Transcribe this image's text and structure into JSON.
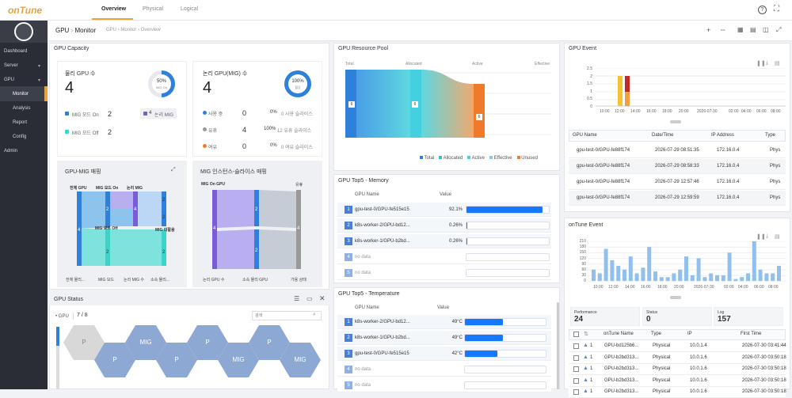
{
  "app": {
    "logo": "onTune"
  },
  "nav": {
    "tabs": [
      "Overview",
      "Physical",
      "Logical"
    ]
  },
  "sidebar": {
    "items": [
      "Dashboard",
      "Server",
      "GPU",
      "Monitor",
      "Analysis",
      "Report",
      "Config",
      "Admin"
    ]
  },
  "header": {
    "title": "GPU",
    "title2": "Monitor",
    "breadcrumb": [
      "GPU",
      "Monitor",
      "Overview"
    ]
  },
  "capacity": {
    "title": "GPU Capacity",
    "physical": {
      "label": "물리 GPU 수",
      "count": "4",
      "pct": "50%",
      "pct_label": "MIG On",
      "mig_on_label": "MIG 모드 On",
      "mig_on": "2",
      "mig_off_label": "MIG 모드 Off",
      "mig_off": "2",
      "logical_mig": "4",
      "logical_mig_label": "논리 MIG"
    },
    "logical": {
      "label": "논리 GPU(MIG) 수",
      "count": "4",
      "pct": "100%",
      "pct_label": "할당",
      "rows": [
        {
          "label": "사용 중",
          "n": "0",
          "pct": "0%",
          "desc": "0 사용 슬라이스"
        },
        {
          "label": "유휴",
          "n": "4",
          "pct": "100%",
          "desc": "12 유휴 슬라이스"
        },
        {
          "label": "여유",
          "n": "0",
          "pct": "0%",
          "desc": "0 여유 슬라이스"
        }
      ]
    },
    "sankey1": {
      "title": "GPU-MIG 매핑",
      "top": [
        "전체 GPU",
        "MIG 모드 On",
        "논리 MIG"
      ],
      "bottom": [
        "전체 물리...",
        "MIG 모드",
        "논리 MIG 수",
        "소속 물리..."
      ],
      "nums": [
        "4",
        "2",
        "4",
        "2",
        "2",
        "2",
        "2"
      ],
      "mid": [
        "MIG 모드 Off",
        "MIG 미활용"
      ]
    },
    "sankey2": {
      "title": "MIG 인스턴스-슬라이스 매핑",
      "top": [
        "MIG On GPU",
        "유휴"
      ],
      "bottom": [
        "논리 GPU 수",
        "소속 물리 GPU",
        "가용 상태"
      ],
      "nums": [
        "4",
        "2",
        "2",
        "4"
      ]
    }
  },
  "pool": {
    "title": "GPU Resource Pool",
    "cols": [
      "Total",
      "Allocated",
      "Active",
      "Effective"
    ],
    "nums": [
      "6",
      "6",
      "6"
    ],
    "legend": [
      "Total",
      "Allocated",
      "Active",
      "Effective",
      "Unused"
    ],
    "colors": [
      "#2e80d8",
      "#3fb8d8",
      "#44d0e0",
      "#8ac6f0",
      "#ef7a2a"
    ]
  },
  "mem": {
    "title": "GPU Top5 - Memory",
    "col_name": "GPU Name",
    "col_value": "Value",
    "rows": [
      {
        "rank": "1",
        "name": "gpu-test-0/GPU-fe515e15",
        "value": "92.1%",
        "pct": 0.921
      },
      {
        "rank": "2",
        "name": "k8s-worker-2/GPU-bd12...",
        "value": "0.26%",
        "pct": 0.0026
      },
      {
        "rank": "3",
        "name": "k8s-worker-1/GPU-b2bd...",
        "value": "0.26%",
        "pct": 0.0026
      },
      {
        "rank": "4",
        "name": "no data",
        "value": "",
        "pct": 0
      },
      {
        "rank": "5",
        "name": "no data",
        "value": "",
        "pct": 0
      }
    ]
  },
  "temp": {
    "title": "GPU Top5 - Temperature",
    "col_name": "GPU Name",
    "col_value": "Value",
    "rows": [
      {
        "rank": "1",
        "name": "k8s-worker-2/GPU-bd12...",
        "value": "49°C",
        "pct": 0.47
      },
      {
        "rank": "2",
        "name": "k8s-worker-1/GPU-b2bd...",
        "value": "49°C",
        "pct": 0.47
      },
      {
        "rank": "3",
        "name": "gpu-test-0/GPU-fe515e15",
        "value": "42°C",
        "pct": 0.4
      },
      {
        "rank": "4",
        "name": "no data",
        "value": "",
        "pct": 0
      },
      {
        "rank": "5",
        "name": "no data",
        "value": "",
        "pct": 0
      }
    ]
  },
  "status": {
    "title": "GPU Status",
    "gpu_label": "GPU",
    "count": "7 / 8",
    "search_placeholder": "검색",
    "hexes": [
      "P",
      "P",
      "MIG",
      "P",
      "P",
      "MIG",
      "P",
      "MIG",
      "P",
      "MIG"
    ]
  },
  "gpu_event": {
    "title": "GPU Event",
    "yticks": [
      "2.5",
      "2",
      "1.5",
      "1",
      "0.5",
      "0"
    ],
    "xticks": [
      "10:00",
      "12:00",
      "14:00",
      "16:00",
      "18:00",
      "20:00",
      "2026-07-30",
      "02:00",
      "04:00",
      "06:00",
      "08:00"
    ],
    "cols": [
      "GPU Name",
      "Date/Time",
      "IP Address",
      "Type"
    ],
    "rows": [
      [
        "gpu-test-0/GPU-fe88f174",
        "2026-07-29 08:51:35",
        "172.16.0.4",
        "Phys"
      ],
      [
        "gpu-test-0/GPU-fe88f174",
        "2026-07-29 08:58:33",
        "172.16.0.4",
        "Phys"
      ],
      [
        "gpu-test-0/GPU-fe88f174",
        "2026-07-29 12:57:46",
        "172.16.0.4",
        "Phys"
      ],
      [
        "gpu-test-0/GPU-fe88f174",
        "2026-07-29 12:59:59",
        "172.16.0.4",
        "Phys"
      ]
    ]
  },
  "ontune_event": {
    "title": "onTune Event",
    "yticks": [
      "210",
      "180",
      "150",
      "120",
      "90",
      "60",
      "30",
      "0"
    ],
    "xticks": [
      "10:00",
      "12:00",
      "14:00",
      "16:00",
      "18:00",
      "20:00",
      "2026-07-30",
      "02:00",
      "04:00",
      "06:00",
      "08:00"
    ],
    "chart_data": {
      "type": "bar",
      "values": [
        60,
        40,
        170,
        110,
        80,
        60,
        130,
        40,
        70,
        180,
        50,
        20,
        20,
        40,
        60,
        130,
        30,
        120,
        20,
        40,
        30,
        30,
        150,
        10,
        20,
        40,
        210,
        60,
        40,
        40,
        80
      ]
    },
    "stats": [
      {
        "label": "Performance",
        "value": "24"
      },
      {
        "label": "Status",
        "value": "0"
      },
      {
        "label": "Log",
        "value": "157"
      }
    ],
    "cols": [
      "onTune Name",
      "Type",
      "IP",
      "First Time"
    ],
    "rows": [
      [
        "1",
        "GPU-bd125b6...",
        "Physical",
        "10.0.1.4",
        "2026-07-30 03:41:44"
      ],
      [
        "1",
        "GPU-b2bd313...",
        "Physical",
        "10.0.1.6",
        "2026-07-30 03:50:18"
      ],
      [
        "1",
        "GPU-b2bd313...",
        "Physical",
        "10.0.1.6",
        "2026-07-30 03:50:18"
      ],
      [
        "1",
        "GPU-b2bd313...",
        "Physical",
        "10.0.1.6",
        "2026-07-30 03:50:18"
      ],
      [
        "1",
        "GPU-b2bd313...",
        "Physical",
        "10.0.1.6",
        "2026-07-30 03:50:18"
      ]
    ]
  }
}
